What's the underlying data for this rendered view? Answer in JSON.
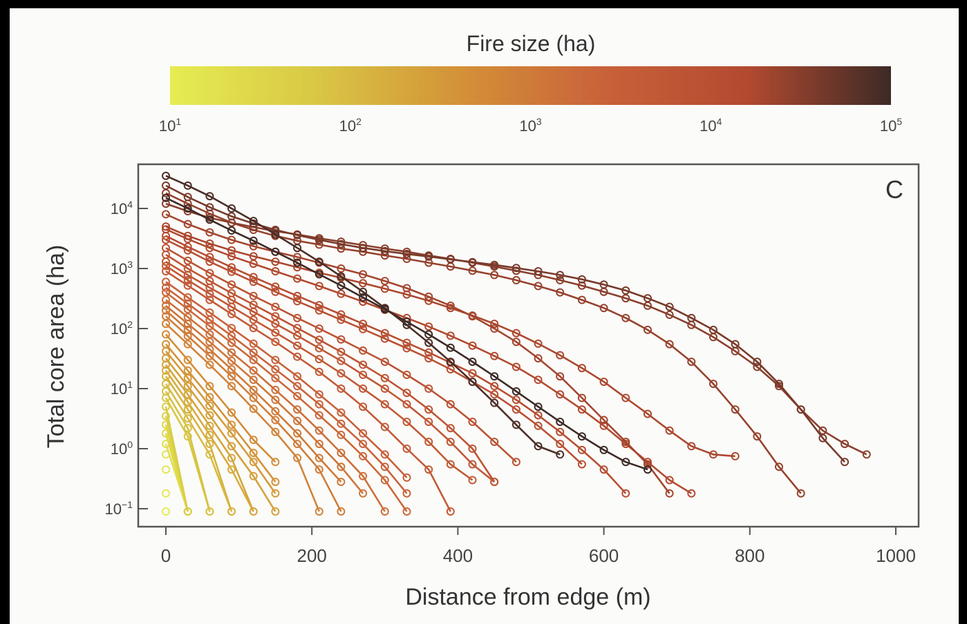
{
  "chart_data": {
    "type": "line",
    "panel_label": "C",
    "xlabel": "Distance from edge (m)",
    "ylabel": "Total core area (ha)",
    "xlim": [
      0,
      1000
    ],
    "ylim": [
      0.08,
      50000
    ],
    "yscale": "log",
    "xticks": [
      0,
      200,
      400,
      600,
      800,
      1000
    ],
    "xtick_labels": [
      "0",
      "200",
      "400",
      "600",
      "800",
      "1000"
    ],
    "yticks": [
      0.1,
      1,
      10,
      100,
      1000,
      10000
    ],
    "ytick_labels": [
      {
        "base": "10",
        "exp": "−1"
      },
      {
        "base": "10",
        "exp": "0"
      },
      {
        "base": "10",
        "exp": "1"
      },
      {
        "base": "10",
        "exp": "2"
      },
      {
        "base": "10",
        "exp": "3"
      },
      {
        "base": "10",
        "exp": "4"
      }
    ],
    "x_step": 30,
    "grid": false,
    "colorbar": {
      "title": "Fire size (ha)",
      "scale": "log",
      "range": [
        10,
        100000
      ],
      "colors": [
        "#e6ec52",
        "#d8c845",
        "#d49238",
        "#c9623a",
        "#b34a30",
        "#3d2a26"
      ],
      "ticks": [
        {
          "base": "10",
          "exp": "1"
        },
        {
          "base": "10",
          "exp": "2"
        },
        {
          "base": "10",
          "exp": "3"
        },
        {
          "base": "10",
          "exp": "4"
        },
        {
          "base": "10",
          "exp": "5"
        }
      ]
    },
    "series": [
      {
        "fire_size": 100000,
        "x": [
          0,
          30,
          60,
          90,
          120,
          150,
          180,
          210,
          240,
          270,
          300,
          330,
          360,
          390,
          420,
          450,
          480,
          510,
          540,
          570,
          600,
          630,
          660
        ],
        "y": [
          15000,
          10000,
          6500,
          4300,
          2900,
          1900,
          1250,
          800,
          520,
          330,
          210,
          130,
          80,
          48,
          28,
          16,
          9,
          5,
          2.8,
          1.6,
          0.95,
          0.6,
          0.45
        ]
      },
      {
        "fire_size": 80000,
        "x": [
          0,
          30,
          60,
          90,
          120,
          150,
          180,
          210,
          240,
          270,
          300,
          330,
          360,
          390,
          420,
          450,
          480,
          510,
          540
        ],
        "y": [
          35000,
          24000,
          16000,
          10000,
          6200,
          3700,
          2200,
          1300,
          740,
          410,
          220,
          115,
          58,
          28,
          13,
          5.8,
          2.5,
          1.1,
          0.8
        ]
      },
      {
        "fire_size": 40000,
        "x": [
          0,
          30,
          60,
          90,
          120,
          150,
          180,
          210,
          240,
          270,
          300,
          330,
          360,
          390,
          420,
          450,
          480,
          510,
          540,
          570,
          600,
          630,
          660,
          690,
          720,
          750,
          780,
          810,
          840,
          870,
          900,
          930
        ],
        "y": [
          24000,
          15500,
          10500,
          7400,
          5600,
          4400,
          3600,
          3000,
          2550,
          2200,
          1950,
          1750,
          1580,
          1420,
          1280,
          1150,
          1020,
          900,
          780,
          660,
          540,
          430,
          320,
          230,
          150,
          95,
          55,
          28,
          12,
          4.5,
          1.5,
          0.6
        ]
      },
      {
        "fire_size": 30000,
        "x": [
          0,
          30,
          60,
          90,
          120,
          150,
          180,
          210,
          240,
          270,
          300,
          330,
          360,
          390,
          420,
          450,
          480,
          510,
          540,
          570,
          600,
          630,
          660,
          690,
          720,
          750,
          780,
          810,
          840,
          870,
          900,
          930,
          960
        ],
        "y": [
          12000,
          9000,
          7000,
          5800,
          4900,
          4200,
          3700,
          3200,
          2800,
          2450,
          2150,
          1900,
          1650,
          1450,
          1250,
          1080,
          920,
          780,
          640,
          520,
          410,
          320,
          240,
          170,
          115,
          72,
          42,
          23,
          11,
          4.5,
          2,
          1.2,
          0.8
        ]
      },
      {
        "fire_size": 25000,
        "x": [
          0,
          30,
          60,
          90,
          120,
          150,
          180,
          210,
          240,
          270,
          300,
          330,
          360,
          390,
          420,
          450,
          480,
          510,
          540,
          570,
          600,
          630,
          660,
          690,
          720,
          750,
          780,
          810,
          840,
          870
        ],
        "y": [
          18000,
          12000,
          8200,
          5800,
          4400,
          3500,
          2900,
          2500,
          2150,
          1900,
          1650,
          1450,
          1250,
          1080,
          920,
          780,
          640,
          510,
          400,
          300,
          220,
          150,
          95,
          55,
          28,
          12,
          4.5,
          1.6,
          0.5,
          0.18
        ]
      },
      {
        "fire_size": 20000,
        "x": [
          0,
          30,
          60,
          90,
          120,
          150,
          180,
          210,
          240,
          270,
          300,
          330,
          360,
          390,
          420,
          450,
          480,
          510,
          540,
          570,
          600,
          630,
          660,
          690
        ],
        "y": [
          8000,
          5500,
          4000,
          3000,
          2350,
          1900,
          1550,
          1250,
          1000,
          800,
          620,
          470,
          340,
          240,
          160,
          100,
          60,
          32,
          16,
          7,
          3,
          1.3,
          0.55,
          0.18
        ]
      },
      {
        "fire_size": 18000,
        "x": [
          0,
          30,
          60,
          90,
          120,
          150,
          180,
          210,
          240,
          270,
          300,
          330,
          360,
          390,
          420,
          450,
          480,
          510,
          540,
          570,
          600,
          630,
          660,
          690,
          720,
          750,
          780
        ],
        "y": [
          5000,
          3500,
          2600,
          2000,
          1600,
          1300,
          1050,
          850,
          700,
          570,
          460,
          370,
          290,
          220,
          165,
          120,
          84,
          56,
          36,
          22,
          13,
          7,
          3.8,
          2,
          1.1,
          0.8,
          0.75
        ]
      },
      {
        "fire_size": 16000,
        "x": [
          0,
          30,
          60,
          90,
          120,
          150,
          180,
          210,
          240,
          270,
          300,
          330,
          360,
          390,
          420,
          450,
          480,
          510,
          540,
          570,
          600,
          630,
          660,
          690,
          720
        ],
        "y": [
          4500,
          3100,
          2200,
          1600,
          1200,
          900,
          680,
          510,
          380,
          280,
          205,
          150,
          108,
          76,
          52,
          35,
          23,
          14,
          8,
          4.5,
          2.4,
          1.2,
          0.6,
          0.3,
          0.18
        ]
      },
      {
        "fire_size": 12000,
        "x": [
          0,
          30,
          60,
          90,
          120,
          150,
          180,
          210,
          240,
          270,
          300,
          330,
          360,
          390,
          420,
          450,
          480,
          510,
          540,
          570,
          600,
          630
        ],
        "y": [
          3500,
          2300,
          1550,
          1050,
          720,
          500,
          350,
          245,
          172,
          120,
          84,
          58,
          40,
          27,
          18,
          11,
          6.5,
          3.6,
          1.9,
          0.95,
          0.45,
          0.18
        ]
      },
      {
        "fire_size": 10000,
        "x": [
          0,
          30,
          60,
          90,
          120,
          150,
          180,
          210,
          240,
          270,
          300,
          330,
          360,
          390,
          420,
          450,
          480,
          510,
          540,
          570
        ],
        "y": [
          3000,
          2000,
          1300,
          880,
          600,
          410,
          285,
          200,
          140,
          98,
          68,
          47,
          32,
          21,
          13,
          8,
          4.5,
          2.4,
          1.2,
          0.55
        ]
      },
      {
        "fire_size": 8000,
        "x": [
          0,
          30,
          60,
          90,
          120,
          150,
          180,
          210,
          240,
          270,
          300,
          330,
          360,
          390,
          420,
          450,
          480
        ],
        "y": [
          2200,
          1350,
          840,
          540,
          350,
          230,
          150,
          100,
          66,
          43,
          28,
          17,
          10,
          5.5,
          2.8,
          1.3,
          0.6
        ]
      },
      {
        "fire_size": 7000,
        "x": [
          0,
          30,
          60,
          90,
          120,
          150,
          180,
          210,
          240,
          270,
          300,
          330,
          360,
          390,
          420,
          450
        ],
        "y": [
          1700,
          1000,
          620,
          390,
          250,
          160,
          102,
          65,
          41,
          25,
          15,
          8.5,
          4.5,
          2.2,
          1,
          0.28
        ]
      },
      {
        "fire_size": 6000,
        "x": [
          0,
          30,
          60,
          90,
          120,
          150,
          180,
          210,
          240,
          270,
          300,
          330,
          360,
          390,
          420,
          450
        ],
        "y": [
          1300,
          780,
          480,
          300,
          190,
          120,
          76,
          47,
          29,
          17,
          10,
          5.5,
          2.8,
          1.3,
          0.55,
          0.28
        ]
      },
      {
        "fire_size": 5000,
        "x": [
          0,
          30,
          60,
          90,
          120,
          150,
          180,
          210,
          240,
          270,
          300,
          330,
          360,
          390,
          420
        ],
        "y": [
          1100,
          640,
          380,
          230,
          140,
          86,
          52,
          31,
          18,
          10,
          5.5,
          2.8,
          1.3,
          0.55,
          0.3
        ]
      },
      {
        "fire_size": 4500,
        "x": [
          0,
          30,
          60,
          90,
          120,
          150,
          180,
          210,
          240,
          270,
          300,
          330,
          360,
          390
        ],
        "y": [
          900,
          520,
          300,
          175,
          102,
          60,
          34,
          19,
          10,
          5,
          2.3,
          1,
          0.45,
          0.09
        ]
      },
      {
        "fire_size": 3000,
        "x": [
          0,
          30,
          60,
          90,
          120,
          150,
          180,
          210,
          240,
          270,
          300,
          330
        ],
        "y": [
          600,
          330,
          185,
          102,
          56,
          30,
          16,
          8,
          4,
          1.8,
          0.8,
          0.33
        ]
      },
      {
        "fire_size": 2500,
        "x": [
          0,
          30,
          60,
          90,
          120,
          150,
          180,
          210,
          240,
          270,
          300,
          330
        ],
        "y": [
          480,
          260,
          140,
          76,
          40,
          21,
          11,
          5.5,
          2.6,
          1.2,
          0.5,
          0.18
        ]
      },
      {
        "fire_size": 2000,
        "x": [
          0,
          30,
          60,
          90,
          120,
          150,
          180,
          210,
          240,
          270,
          300,
          330
        ],
        "y": [
          400,
          210,
          110,
          58,
          30,
          15,
          7.5,
          3.6,
          1.7,
          0.75,
          0.3,
          0.09
        ]
      },
      {
        "fire_size": 1500,
        "x": [
          0,
          30,
          60,
          90,
          120,
          150,
          180,
          210,
          240,
          270,
          300
        ],
        "y": [
          300,
          155,
          80,
          40,
          20,
          9.5,
          4.5,
          2,
          0.85,
          0.35,
          0.09
        ]
      },
      {
        "fire_size": 1200,
        "x": [
          0,
          30,
          60,
          90,
          120,
          150,
          180,
          210,
          240,
          270
        ],
        "y": [
          240,
          120,
          60,
          29,
          14,
          6.5,
          2.9,
          1.2,
          0.5,
          0.18
        ]
      },
      {
        "fire_size": 1000,
        "x": [
          0,
          30,
          60,
          90,
          120,
          150,
          180,
          210,
          240
        ],
        "y": [
          200,
          95,
          45,
          21,
          9.5,
          4.2,
          1.8,
          0.7,
          0.28
        ]
      },
      {
        "fire_size": 900,
        "x": [
          0,
          30,
          60,
          90,
          120,
          150,
          180,
          210,
          240
        ],
        "y": [
          160,
          75,
          35,
          16,
          7,
          3,
          1.2,
          0.45,
          0.09
        ]
      },
      {
        "fire_size": 700,
        "x": [
          0,
          30,
          60,
          90,
          120,
          150,
          180,
          210
        ],
        "y": [
          120,
          55,
          25,
          11,
          4.6,
          1.9,
          0.7,
          0.09
        ]
      },
      {
        "fire_size": 500,
        "x": [
          0,
          30,
          60,
          90,
          120,
          150
        ],
        "y": [
          80,
          30,
          11,
          4,
          1.4,
          0.6
        ]
      },
      {
        "fire_size": 400,
        "x": [
          0,
          30,
          60,
          90,
          120,
          150
        ],
        "y": [
          55,
          20,
          7.2,
          2.5,
          0.85,
          0.28
        ]
      },
      {
        "fire_size": 300,
        "x": [
          0,
          30,
          60,
          90,
          120,
          150
        ],
        "y": [
          42,
          15,
          5.2,
          1.8,
          0.6,
          0.18
        ]
      },
      {
        "fire_size": 250,
        "x": [
          0,
          30,
          60,
          90,
          120,
          150
        ],
        "y": [
          32,
          11,
          3.6,
          1.1,
          0.35,
          0.09
        ]
      },
      {
        "fire_size": 200,
        "x": [
          0,
          30,
          60,
          90,
          120
        ],
        "y": [
          25,
          8,
          2.4,
          0.7,
          0.09
        ]
      },
      {
        "fire_size": 160,
        "x": [
          0,
          30,
          60,
          90,
          120
        ],
        "y": [
          20,
          6,
          1.7,
          0.45,
          0.09
        ]
      },
      {
        "fire_size": 130,
        "x": [
          0,
          30,
          60,
          90
        ],
        "y": [
          16,
          4.5,
          1.2,
          0.09
        ]
      },
      {
        "fire_size": 100,
        "x": [
          0,
          30,
          60,
          90
        ],
        "y": [
          12,
          3.2,
          0.8,
          0.09
        ]
      },
      {
        "fire_size": 80,
        "x": [
          0,
          30,
          60
        ],
        "y": [
          9,
          2.2,
          0.09
        ]
      },
      {
        "fire_size": 65,
        "x": [
          0,
          30,
          60
        ],
        "y": [
          7,
          1.6,
          0.09
        ]
      },
      {
        "fire_size": 50,
        "x": [
          0,
          30
        ],
        "y": [
          5,
          0.09
        ]
      },
      {
        "fire_size": 40,
        "x": [
          0,
          30
        ],
        "y": [
          3.5,
          0.09
        ]
      },
      {
        "fire_size": 30,
        "x": [
          0,
          30
        ],
        "y": [
          2.5,
          0.09
        ]
      },
      {
        "fire_size": 25,
        "x": [
          0,
          30
        ],
        "y": [
          1.8,
          0.09
        ]
      },
      {
        "fire_size": 20,
        "x": [
          0,
          30
        ],
        "y": [
          1.2,
          0.09
        ]
      },
      {
        "fire_size": 15,
        "x": [
          0
        ],
        "y": [
          0.8
        ]
      },
      {
        "fire_size": 12,
        "x": [
          0
        ],
        "y": [
          0.45
        ]
      },
      {
        "fire_size": 11,
        "x": [
          0
        ],
        "y": [
          0.18
        ]
      },
      {
        "fire_size": 10,
        "x": [
          0
        ],
        "y": [
          0.09
        ]
      }
    ]
  }
}
